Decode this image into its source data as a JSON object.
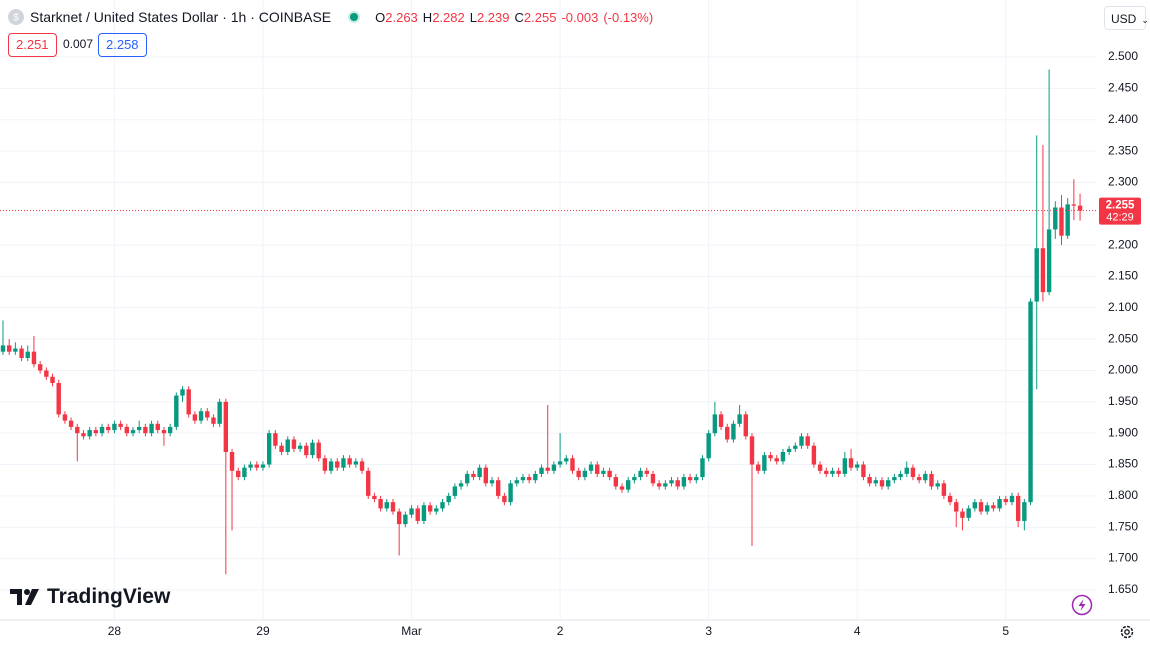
{
  "chart_data": {
    "type": "candlestick",
    "title": "Starknet / United States Dollar · 1h · COINBASE",
    "ohlc_legend": [
      {
        "key": "O",
        "value": 2.263
      },
      {
        "key": "H",
        "value": 2.282
      },
      {
        "key": "L",
        "value": 2.239
      },
      {
        "key": "C",
        "value": 2.255
      }
    ],
    "change": -0.003,
    "change_percent": "(-0.13%)",
    "bid": 2.251,
    "spread": 0.007,
    "ask": 2.258,
    "currency": "USD",
    "last_price": 2.255,
    "countdown": "42:29",
    "logo": "TradingView",
    "up_color": "#089981",
    "down_color": "#f23645",
    "grid": true,
    "ylim": [
      1.602,
      2.591
    ],
    "yticks": [
      {
        "value": 1.65,
        "label": "1.650"
      },
      {
        "value": 1.7,
        "label": "1.700"
      },
      {
        "value": 1.75,
        "label": "1.750"
      },
      {
        "value": 1.8,
        "label": "1.800"
      },
      {
        "value": 1.85,
        "label": "1.850"
      },
      {
        "value": 1.9,
        "label": "1.900"
      },
      {
        "value": 1.95,
        "label": "1.950"
      },
      {
        "value": 2.0,
        "label": "2.000"
      },
      {
        "value": 2.05,
        "label": "2.050"
      },
      {
        "value": 2.1,
        "label": "2.100"
      },
      {
        "value": 2.15,
        "label": "2.150"
      },
      {
        "value": 2.2,
        "label": "2.200"
      },
      {
        "value": 2.25,
        "label": "2.250"
      },
      {
        "value": 2.3,
        "label": "2.300"
      },
      {
        "value": 2.35,
        "label": "2.350"
      },
      {
        "value": 2.4,
        "label": "2.400"
      },
      {
        "value": 2.45,
        "label": "2.450"
      },
      {
        "value": 2.5,
        "label": "2.500"
      }
    ],
    "categories": [
      null,
      null,
      null,
      null,
      null,
      null,
      null,
      null,
      null,
      null,
      null,
      null,
      null,
      null,
      null,
      null,
      null,
      null,
      "28",
      null,
      null,
      null,
      null,
      null,
      null,
      null,
      null,
      null,
      null,
      null,
      null,
      null,
      null,
      null,
      null,
      null,
      null,
      null,
      null,
      null,
      null,
      null,
      "29",
      null,
      null,
      null,
      null,
      null,
      null,
      null,
      null,
      null,
      null,
      null,
      null,
      null,
      null,
      null,
      null,
      null,
      null,
      null,
      null,
      null,
      null,
      null,
      "Mar",
      null,
      null,
      null,
      null,
      null,
      null,
      null,
      null,
      null,
      null,
      null,
      null,
      null,
      null,
      null,
      null,
      null,
      null,
      null,
      null,
      null,
      null,
      null,
      "2",
      null,
      null,
      null,
      null,
      null,
      null,
      null,
      null,
      null,
      null,
      null,
      null,
      null,
      null,
      null,
      null,
      null,
      null,
      null,
      null,
      null,
      null,
      null,
      "3",
      null,
      null,
      null,
      null,
      null,
      null,
      null,
      null,
      null,
      null,
      null,
      null,
      null,
      null,
      null,
      null,
      null,
      null,
      null,
      null,
      null,
      null,
      null,
      "4",
      null,
      null,
      null,
      null,
      null,
      null,
      null,
      null,
      null,
      null,
      null,
      null,
      null,
      null,
      null,
      null,
      null,
      null,
      null,
      null,
      null,
      null,
      null,
      "5",
      null,
      null,
      null,
      null,
      null,
      null,
      null,
      null,
      null,
      null,
      null,
      null
    ],
    "candles": [
      [
        2.03,
        2.08,
        2.025,
        2.04
      ],
      [
        2.04,
        2.05,
        2.025,
        2.03
      ],
      [
        2.03,
        2.045,
        2.025,
        2.035
      ],
      [
        2.035,
        2.04,
        2.015,
        2.02
      ],
      [
        2.02,
        2.04,
        2.015,
        2.03
      ],
      [
        2.03,
        2.055,
        2.005,
        2.01
      ],
      [
        2.01,
        2.015,
        1.995,
        2.0
      ],
      [
        2.0,
        2.005,
        1.985,
        1.99
      ],
      [
        1.99,
        1.995,
        1.975,
        1.98
      ],
      [
        1.98,
        1.985,
        1.925,
        1.93
      ],
      [
        1.93,
        1.935,
        1.915,
        1.92
      ],
      [
        1.92,
        1.925,
        1.905,
        1.91
      ],
      [
        1.91,
        1.915,
        1.855,
        1.9
      ],
      [
        1.9,
        1.905,
        1.89,
        1.895
      ],
      [
        1.895,
        1.91,
        1.89,
        1.905
      ],
      [
        1.905,
        1.91,
        1.895,
        1.9
      ],
      [
        1.9,
        1.915,
        1.895,
        1.91
      ],
      [
        1.91,
        1.915,
        1.9,
        1.905
      ],
      [
        1.905,
        1.92,
        1.9,
        1.915
      ],
      [
        1.915,
        1.92,
        1.905,
        1.91
      ],
      [
        1.91,
        1.915,
        1.895,
        1.9
      ],
      [
        1.9,
        1.91,
        1.895,
        1.905
      ],
      [
        1.905,
        1.92,
        1.9,
        1.91
      ],
      [
        1.91,
        1.915,
        1.895,
        1.9
      ],
      [
        1.9,
        1.92,
        1.895,
        1.915
      ],
      [
        1.915,
        1.92,
        1.9,
        1.905
      ],
      [
        1.905,
        1.91,
        1.88,
        1.9
      ],
      [
        1.9,
        1.915,
        1.895,
        1.91
      ],
      [
        1.91,
        1.965,
        1.905,
        1.96
      ],
      [
        1.96,
        1.975,
        1.95,
        1.97
      ],
      [
        1.97,
        1.975,
        1.925,
        1.93
      ],
      [
        1.93,
        1.935,
        1.915,
        1.92
      ],
      [
        1.92,
        1.94,
        1.915,
        1.935
      ],
      [
        1.935,
        1.94,
        1.92,
        1.925
      ],
      [
        1.925,
        1.93,
        1.91,
        1.915
      ],
      [
        1.915,
        1.955,
        1.91,
        1.95
      ],
      [
        1.95,
        1.955,
        1.675,
        1.87
      ],
      [
        1.87,
        1.875,
        1.745,
        1.84
      ],
      [
        1.84,
        1.845,
        1.825,
        1.83
      ],
      [
        1.83,
        1.85,
        1.825,
        1.845
      ],
      [
        1.845,
        1.855,
        1.84,
        1.85
      ],
      [
        1.85,
        1.855,
        1.84,
        1.845
      ],
      [
        1.845,
        1.855,
        1.84,
        1.85
      ],
      [
        1.85,
        1.905,
        1.845,
        1.9
      ],
      [
        1.9,
        1.905,
        1.875,
        1.88
      ],
      [
        1.88,
        1.885,
        1.865,
        1.87
      ],
      [
        1.87,
        1.895,
        1.865,
        1.89
      ],
      [
        1.89,
        1.895,
        1.87,
        1.875
      ],
      [
        1.875,
        1.885,
        1.87,
        1.88
      ],
      [
        1.88,
        1.885,
        1.86,
        1.865
      ],
      [
        1.865,
        1.89,
        1.86,
        1.885
      ],
      [
        1.885,
        1.89,
        1.855,
        1.86
      ],
      [
        1.86,
        1.865,
        1.835,
        1.84
      ],
      [
        1.84,
        1.86,
        1.835,
        1.855
      ],
      [
        1.855,
        1.86,
        1.84,
        1.845
      ],
      [
        1.845,
        1.865,
        1.84,
        1.86
      ],
      [
        1.86,
        1.865,
        1.845,
        1.85
      ],
      [
        1.85,
        1.86,
        1.845,
        1.855
      ],
      [
        1.855,
        1.86,
        1.835,
        1.84
      ],
      [
        1.84,
        1.845,
        1.795,
        1.8
      ],
      [
        1.8,
        1.805,
        1.79,
        1.795
      ],
      [
        1.795,
        1.8,
        1.775,
        1.78
      ],
      [
        1.78,
        1.795,
        1.775,
        1.79
      ],
      [
        1.79,
        1.795,
        1.77,
        1.775
      ],
      [
        1.775,
        1.78,
        1.705,
        1.755
      ],
      [
        1.755,
        1.775,
        1.75,
        1.77
      ],
      [
        1.77,
        1.785,
        1.765,
        1.78
      ],
      [
        1.78,
        1.785,
        1.755,
        1.76
      ],
      [
        1.76,
        1.79,
        1.755,
        1.785
      ],
      [
        1.785,
        1.79,
        1.77,
        1.775
      ],
      [
        1.775,
        1.785,
        1.77,
        1.78
      ],
      [
        1.78,
        1.795,
        1.775,
        1.79
      ],
      [
        1.79,
        1.805,
        1.785,
        1.8
      ],
      [
        1.8,
        1.82,
        1.795,
        1.815
      ],
      [
        1.815,
        1.825,
        1.81,
        1.82
      ],
      [
        1.82,
        1.84,
        1.815,
        1.835
      ],
      [
        1.835,
        1.84,
        1.825,
        1.83
      ],
      [
        1.83,
        1.85,
        1.825,
        1.845
      ],
      [
        1.845,
        1.85,
        1.815,
        1.82
      ],
      [
        1.82,
        1.83,
        1.815,
        1.825
      ],
      [
        1.825,
        1.83,
        1.795,
        1.8
      ],
      [
        1.8,
        1.805,
        1.785,
        1.79
      ],
      [
        1.79,
        1.825,
        1.785,
        1.82
      ],
      [
        1.82,
        1.83,
        1.815,
        1.825
      ],
      [
        1.825,
        1.835,
        1.82,
        1.83
      ],
      [
        1.83,
        1.835,
        1.82,
        1.825
      ],
      [
        1.825,
        1.84,
        1.82,
        1.835
      ],
      [
        1.835,
        1.85,
        1.83,
        1.845
      ],
      [
        1.845,
        1.945,
        1.835,
        1.84
      ],
      [
        1.84,
        1.855,
        1.835,
        1.85
      ],
      [
        1.85,
        1.9,
        1.845,
        1.855
      ],
      [
        1.855,
        1.865,
        1.85,
        1.86
      ],
      [
        1.86,
        1.865,
        1.835,
        1.84
      ],
      [
        1.84,
        1.845,
        1.825,
        1.83
      ],
      [
        1.83,
        1.845,
        1.825,
        1.84
      ],
      [
        1.84,
        1.855,
        1.835,
        1.85
      ],
      [
        1.85,
        1.855,
        1.83,
        1.835
      ],
      [
        1.835,
        1.845,
        1.83,
        1.84
      ],
      [
        1.84,
        1.845,
        1.825,
        1.83
      ],
      [
        1.83,
        1.835,
        1.81,
        1.815
      ],
      [
        1.815,
        1.82,
        1.805,
        1.81
      ],
      [
        1.81,
        1.83,
        1.805,
        1.825
      ],
      [
        1.825,
        1.835,
        1.82,
        1.83
      ],
      [
        1.83,
        1.845,
        1.825,
        1.84
      ],
      [
        1.84,
        1.845,
        1.83,
        1.835
      ],
      [
        1.835,
        1.84,
        1.815,
        1.82
      ],
      [
        1.82,
        1.825,
        1.81,
        1.815
      ],
      [
        1.815,
        1.825,
        1.81,
        1.82
      ],
      [
        1.82,
        1.83,
        1.815,
        1.825
      ],
      [
        1.825,
        1.83,
        1.81,
        1.815
      ],
      [
        1.815,
        1.835,
        1.81,
        1.83
      ],
      [
        1.83,
        1.835,
        1.82,
        1.825
      ],
      [
        1.825,
        1.835,
        1.82,
        1.83
      ],
      [
        1.83,
        1.865,
        1.825,
        1.86
      ],
      [
        1.86,
        1.905,
        1.855,
        1.9
      ],
      [
        1.9,
        1.95,
        1.895,
        1.93
      ],
      [
        1.93,
        1.935,
        1.905,
        1.91
      ],
      [
        1.91,
        1.915,
        1.885,
        1.89
      ],
      [
        1.89,
        1.92,
        1.885,
        1.915
      ],
      [
        1.915,
        1.945,
        1.91,
        1.93
      ],
      [
        1.93,
        1.935,
        1.89,
        1.895
      ],
      [
        1.895,
        1.9,
        1.72,
        1.85
      ],
      [
        1.85,
        1.855,
        1.835,
        1.84
      ],
      [
        1.84,
        1.87,
        1.835,
        1.865
      ],
      [
        1.865,
        1.87,
        1.855,
        1.86
      ],
      [
        1.86,
        1.865,
        1.85,
        1.855
      ],
      [
        1.855,
        1.875,
        1.85,
        1.87
      ],
      [
        1.87,
        1.88,
        1.865,
        1.875
      ],
      [
        1.875,
        1.885,
        1.87,
        1.88
      ],
      [
        1.88,
        1.9,
        1.875,
        1.895
      ],
      [
        1.895,
        1.9,
        1.875,
        1.88
      ],
      [
        1.88,
        1.885,
        1.845,
        1.85
      ],
      [
        1.85,
        1.855,
        1.835,
        1.84
      ],
      [
        1.84,
        1.845,
        1.83,
        1.835
      ],
      [
        1.835,
        1.845,
        1.83,
        1.84
      ],
      [
        1.84,
        1.845,
        1.83,
        1.835
      ],
      [
        1.835,
        1.87,
        1.83,
        1.86
      ],
      [
        1.86,
        1.875,
        1.84,
        1.845
      ],
      [
        1.845,
        1.855,
        1.84,
        1.85
      ],
      [
        1.85,
        1.855,
        1.825,
        1.83
      ],
      [
        1.83,
        1.835,
        1.815,
        1.82
      ],
      [
        1.82,
        1.83,
        1.815,
        1.825
      ],
      [
        1.825,
        1.83,
        1.81,
        1.815
      ],
      [
        1.815,
        1.83,
        1.81,
        1.825
      ],
      [
        1.825,
        1.835,
        1.82,
        1.83
      ],
      [
        1.83,
        1.84,
        1.825,
        1.835
      ],
      [
        1.835,
        1.855,
        1.83,
        1.845
      ],
      [
        1.845,
        1.85,
        1.825,
        1.83
      ],
      [
        1.83,
        1.835,
        1.82,
        1.825
      ],
      [
        1.825,
        1.84,
        1.82,
        1.835
      ],
      [
        1.835,
        1.84,
        1.81,
        1.815
      ],
      [
        1.815,
        1.825,
        1.81,
        1.82
      ],
      [
        1.82,
        1.825,
        1.795,
        1.8
      ],
      [
        1.8,
        1.805,
        1.785,
        1.79
      ],
      [
        1.79,
        1.795,
        1.75,
        1.775
      ],
      [
        1.775,
        1.78,
        1.745,
        1.765
      ],
      [
        1.765,
        1.785,
        1.76,
        1.78
      ],
      [
        1.78,
        1.795,
        1.775,
        1.79
      ],
      [
        1.79,
        1.795,
        1.77,
        1.775
      ],
      [
        1.775,
        1.79,
        1.77,
        1.785
      ],
      [
        1.785,
        1.79,
        1.775,
        1.78
      ],
      [
        1.78,
        1.8,
        1.775,
        1.795
      ],
      [
        1.795,
        1.8,
        1.785,
        1.79
      ],
      [
        1.79,
        1.805,
        1.785,
        1.8
      ],
      [
        1.8,
        1.805,
        1.75,
        1.76
      ],
      [
        1.76,
        1.795,
        1.745,
        1.79
      ],
      [
        1.79,
        2.115,
        1.785,
        2.11
      ],
      [
        2.11,
        2.375,
        1.97,
        2.195
      ],
      [
        2.195,
        2.36,
        2.11,
        2.125
      ],
      [
        2.125,
        2.48,
        2.12,
        2.225
      ],
      [
        2.225,
        2.27,
        2.21,
        2.26
      ],
      [
        2.26,
        2.28,
        2.2,
        2.215
      ],
      [
        2.215,
        2.275,
        2.21,
        2.265
      ],
      [
        2.265,
        2.305,
        2.24,
        2.263
      ],
      [
        2.263,
        2.282,
        2.239,
        2.255
      ]
    ]
  }
}
